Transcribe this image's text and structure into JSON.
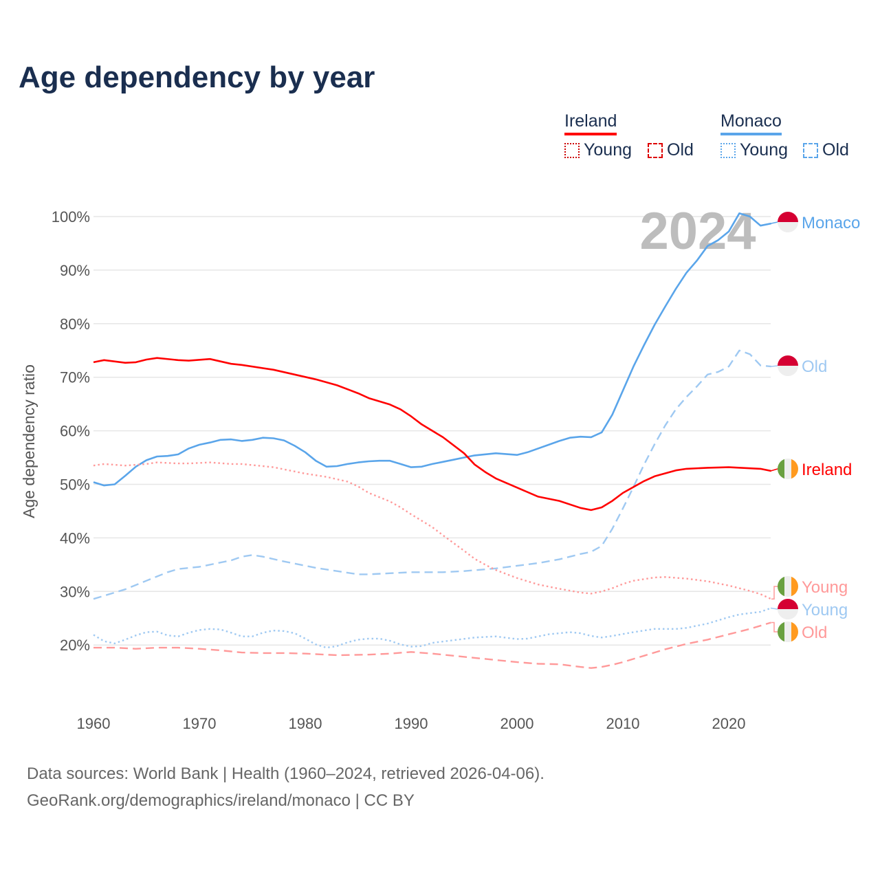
{
  "title": "Age dependency by year",
  "legend": {
    "groups": [
      {
        "country": "Ireland",
        "color": "#ff0000",
        "items": [
          {
            "label": "Young",
            "style": "dotted",
            "color": "#cc0000"
          },
          {
            "label": "Old",
            "style": "dashed",
            "color": "#dd0000"
          }
        ]
      },
      {
        "country": "Monaco",
        "color": "#5aa5ea",
        "items": [
          {
            "label": "Young",
            "style": "dotted",
            "color": "#5aa5ea"
          },
          {
            "label": "Old",
            "style": "dashed",
            "color": "#5aa5ea"
          }
        ]
      }
    ]
  },
  "current_year": "2024",
  "footer": {
    "line1": "Data sources: World Bank | Health (1960–2024, retrieved 2026-04-06).",
    "line2": "GeoRank.org/demographics/ireland/monaco | CC BY"
  },
  "chart_data": {
    "type": "line",
    "title": "Age dependency by year",
    "xlabel": "",
    "ylabel": "Age dependency ratio",
    "xlim": [
      1960,
      2024
    ],
    "ylim": [
      10,
      100
    ],
    "grid": true,
    "y_ticks": [
      "20%",
      "30%",
      "40%",
      "50%",
      "60%",
      "70%",
      "80%",
      "90%",
      "100%"
    ],
    "y_tick_values": [
      20,
      30,
      40,
      50,
      60,
      70,
      80,
      90,
      100
    ],
    "x_ticks": [
      "1960",
      "1970",
      "1980",
      "1990",
      "2000",
      "2010",
      "2020"
    ],
    "x_tick_values": [
      1960,
      1970,
      1980,
      1990,
      2000,
      2010,
      2020
    ],
    "legend_position": "top-right",
    "series": [
      {
        "name": "Monaco",
        "end_label": "Monaco",
        "country": "monaco",
        "color": "#5aa5ea",
        "style": "solid",
        "x": [
          1960,
          1961,
          1962,
          1963,
          1964,
          1965,
          1966,
          1967,
          1968,
          1969,
          1970,
          1971,
          1972,
          1973,
          1974,
          1975,
          1976,
          1977,
          1978,
          1979,
          1980,
          1981,
          1982,
          1983,
          1984,
          1985,
          1986,
          1987,
          1988,
          1989,
          1990,
          1991,
          1992,
          1993,
          1994,
          1995,
          1996,
          1998,
          2000,
          2001,
          2003,
          2004,
          2005,
          2006,
          2007,
          2008,
          2009,
          2010,
          2011,
          2012,
          2013,
          2014,
          2015,
          2016,
          2017,
          2018,
          2019,
          2020,
          2021,
          2022,
          2023,
          2024
        ],
        "y": [
          50.4,
          49.8,
          50.0,
          51.6,
          53.3,
          54.5,
          55.2,
          55.3,
          55.6,
          56.7,
          57.4,
          57.8,
          58.3,
          58.4,
          58.1,
          58.3,
          58.7,
          58.6,
          58.2,
          57.2,
          56.0,
          54.4,
          53.3,
          53.4,
          53.8,
          54.1,
          54.3,
          54.4,
          54.4,
          53.8,
          53.2,
          53.3,
          53.8,
          54.2,
          54.6,
          55.0,
          55.4,
          55.8,
          55.5,
          56.0,
          57.4,
          58.1,
          58.7,
          58.9,
          58.8,
          59.7,
          63.0,
          67.5,
          72.0,
          76.0,
          79.8,
          83.2,
          86.5,
          89.5,
          91.8,
          94.5,
          95.6,
          97.2,
          100.6,
          100.0,
          98.3,
          98.7
        ]
      },
      {
        "name": "Monaco Old",
        "end_label": "Old",
        "country": "monaco",
        "color": "#9fc9f2",
        "style": "dashed",
        "x": [
          1960,
          1962,
          1963,
          1965,
          1967,
          1968,
          1970,
          1972,
          1973,
          1974,
          1975,
          1976,
          1978,
          1980,
          1981,
          1983,
          1985,
          1986,
          1988,
          1990,
          1993,
          1995,
          1998,
          2000,
          2002,
          2004,
          2006,
          2007,
          2008,
          2009,
          2010,
          2011,
          2012,
          2013,
          2014,
          2015,
          2016,
          2017,
          2018,
          2019,
          2020,
          2021,
          2022,
          2023,
          2024
        ],
        "y": [
          28.6,
          29.8,
          30.4,
          32.0,
          33.6,
          34.2,
          34.6,
          35.4,
          35.8,
          36.5,
          36.8,
          36.5,
          35.6,
          34.8,
          34.4,
          33.8,
          33.2,
          33.2,
          33.4,
          33.6,
          33.6,
          33.8,
          34.3,
          34.8,
          35.3,
          36.0,
          37.0,
          37.4,
          38.5,
          41.7,
          45.5,
          49.5,
          53.7,
          57.5,
          61.0,
          64.0,
          66.3,
          68.3,
          70.5,
          71.0,
          72.0,
          75.0,
          74.3,
          72.2,
          72.0
        ]
      },
      {
        "name": "Ireland",
        "end_label": "Ireland",
        "country": "ireland",
        "color": "#ff0000",
        "style": "solid",
        "x": [
          1960,
          1961,
          1963,
          1964,
          1965,
          1966,
          1968,
          1969,
          1971,
          1973,
          1974,
          1977,
          1979,
          1981,
          1983,
          1985,
          1986,
          1988,
          1989,
          1990,
          1991,
          1993,
          1995,
          1996,
          1997,
          1998,
          2000,
          2002,
          2004,
          2006,
          2007,
          2008,
          2009,
          2010,
          2012,
          2013,
          2015,
          2016,
          2018,
          2020,
          2023,
          2024
        ],
        "y": [
          72.8,
          73.2,
          72.7,
          72.8,
          73.3,
          73.6,
          73.2,
          73.1,
          73.4,
          72.5,
          72.3,
          71.4,
          70.5,
          69.6,
          68.5,
          67.0,
          66.1,
          64.9,
          64.0,
          62.7,
          61.2,
          58.8,
          55.8,
          53.7,
          52.3,
          51.1,
          49.4,
          47.7,
          46.9,
          45.6,
          45.2,
          45.7,
          46.9,
          48.4,
          50.6,
          51.5,
          52.6,
          52.9,
          53.1,
          53.2,
          52.9,
          52.5
        ]
      },
      {
        "name": "Ireland Young",
        "end_label": "Young",
        "country": "ireland",
        "color": "#ff9999",
        "style": "dotted",
        "x": [
          1960,
          1961,
          1963,
          1965,
          1966,
          1968,
          1969,
          1971,
          1973,
          1974,
          1976,
          1977,
          1978,
          1980,
          1982,
          1984,
          1985,
          1986,
          1988,
          1989,
          1990,
          1992,
          1993,
          1995,
          1996,
          1997,
          1998,
          2000,
          2002,
          2004,
          2006,
          2007,
          2008,
          2009,
          2010,
          2011,
          2013,
          2014,
          2016,
          2018,
          2020,
          2022,
          2023,
          2024
        ],
        "y": [
          53.5,
          53.8,
          53.5,
          53.8,
          54.1,
          53.9,
          53.9,
          54.1,
          53.8,
          53.8,
          53.4,
          53.2,
          52.8,
          52.0,
          51.4,
          50.5,
          49.6,
          48.4,
          46.8,
          45.7,
          44.4,
          42.0,
          40.5,
          37.6,
          36.1,
          35.0,
          34.0,
          32.5,
          31.3,
          30.5,
          29.8,
          29.6,
          30.0,
          30.6,
          31.4,
          32.0,
          32.6,
          32.7,
          32.4,
          31.9,
          31.1,
          30.1,
          29.5,
          28.6
        ]
      },
      {
        "name": "Monaco Young",
        "end_label": "Young",
        "country": "monaco",
        "color": "#9fc9f2",
        "style": "dotted",
        "x": [
          1960,
          1961,
          1962,
          1963,
          1964,
          1965,
          1966,
          1967,
          1968,
          1969,
          1970,
          1971,
          1972,
          1973,
          1974,
          1975,
          1976,
          1977,
          1978,
          1979,
          1980,
          1981,
          1982,
          1983,
          1984,
          1985,
          1986,
          1987,
          1988,
          1989,
          1990,
          1991,
          1992,
          1994,
          1996,
          1998,
          2000,
          2001,
          2003,
          2005,
          2006,
          2007,
          2008,
          2009,
          2011,
          2013,
          2015,
          2016,
          2018,
          2020,
          2021,
          2023,
          2024
        ],
        "y": [
          21.9,
          20.7,
          20.3,
          21.0,
          21.8,
          22.4,
          22.5,
          21.8,
          21.6,
          22.3,
          22.8,
          23.0,
          22.9,
          22.3,
          21.6,
          21.6,
          22.3,
          22.7,
          22.6,
          22.2,
          21.2,
          20.1,
          19.5,
          19.8,
          20.5,
          21.0,
          21.2,
          21.2,
          20.8,
          20.1,
          19.7,
          19.8,
          20.4,
          20.9,
          21.4,
          21.6,
          21.1,
          21.2,
          22.0,
          22.4,
          22.2,
          21.7,
          21.4,
          21.7,
          22.4,
          23.0,
          23.0,
          23.2,
          24.0,
          25.2,
          25.7,
          26.2,
          26.9
        ]
      },
      {
        "name": "Ireland Old",
        "end_label": "Old",
        "country": "ireland",
        "color": "#ff9999",
        "style": "dashed",
        "x": [
          1960,
          1962,
          1964,
          1966,
          1968,
          1970,
          1972,
          1974,
          1976,
          1978,
          1980,
          1983,
          1986,
          1988,
          1990,
          1992,
          1994,
          1996,
          1998,
          2000,
          2002,
          2004,
          2006,
          2007,
          2008,
          2009,
          2010,
          2012,
          2014,
          2016,
          2018,
          2020,
          2022,
          2024
        ],
        "y": [
          19.5,
          19.5,
          19.3,
          19.5,
          19.5,
          19.3,
          19.0,
          18.6,
          18.5,
          18.5,
          18.4,
          18.1,
          18.2,
          18.4,
          18.7,
          18.4,
          18.0,
          17.6,
          17.2,
          16.8,
          16.5,
          16.4,
          15.9,
          15.7,
          15.9,
          16.3,
          16.8,
          18.0,
          19.2,
          20.2,
          21.0,
          22.0,
          23.0,
          24.2
        ]
      }
    ]
  }
}
